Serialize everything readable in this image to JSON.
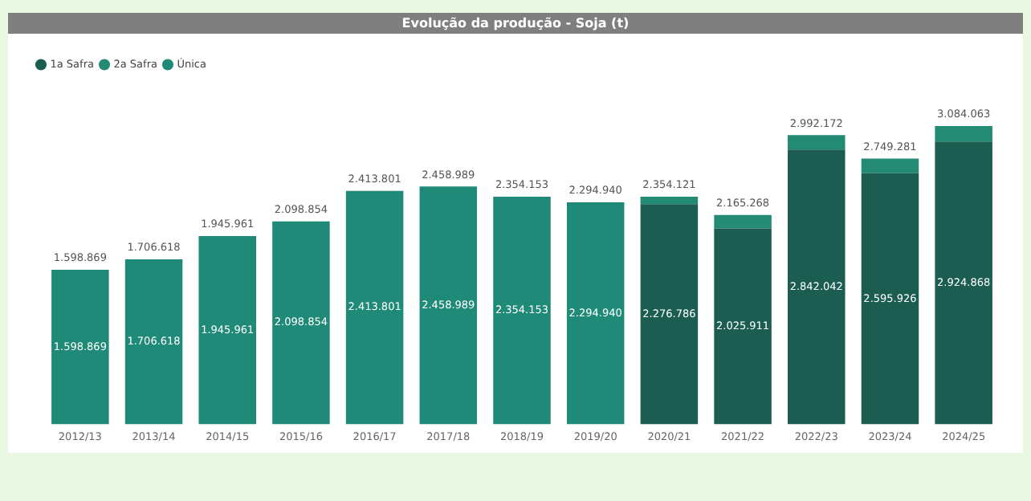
{
  "chart_data": {
    "type": "bar",
    "title": "Evolução da produção - Soja (t)",
    "stacked": true,
    "legend": "top left",
    "grid": false,
    "tick_labels": "x",
    "categories": [
      "2012/13",
      "2013/14",
      "2014/15",
      "2015/16",
      "2016/17",
      "2017/18",
      "2018/19",
      "2019/20",
      "2020/21",
      "2021/22",
      "2022/23",
      "2023/24",
      "2024/25"
    ],
    "series": [
      {
        "name": "1a Safra",
        "color": "#1b5e51",
        "values": [
          null,
          null,
          null,
          null,
          null,
          null,
          null,
          null,
          2276786,
          2025911,
          2842042,
          2595926,
          2924868
        ],
        "value_labels": [
          null,
          null,
          null,
          null,
          null,
          null,
          null,
          null,
          "2.276.786",
          "2.025.911",
          "2.842.042",
          "2.595.926",
          "2.924.868"
        ]
      },
      {
        "name": "2a Safra",
        "color": "#238b73",
        "values": [
          null,
          null,
          null,
          null,
          null,
          null,
          null,
          null,
          77335,
          139357,
          150130,
          153355,
          159195
        ]
      },
      {
        "name": "Única",
        "color": "#1f8a77",
        "values": [
          1598869,
          1706618,
          1945961,
          2098854,
          2413801,
          2458989,
          2354153,
          2294940,
          null,
          null,
          null,
          null,
          null
        ],
        "value_labels": [
          "1.598.869",
          "1.706.618",
          "1.945.961",
          "2.098.854",
          "2.413.801",
          "2.458.989",
          "2.354.153",
          "2.294.940",
          null,
          null,
          null,
          null,
          null
        ]
      }
    ],
    "totals": [
      "1.598.869",
      "1.706.618",
      "1.945.961",
      "2.098.854",
      "2.413.801",
      "2.458.989",
      "2.354.153",
      "2.294.940",
      "2.354.121",
      "2.165.268",
      "2.992.172",
      "2.749.281",
      "3.084.063"
    ]
  }
}
